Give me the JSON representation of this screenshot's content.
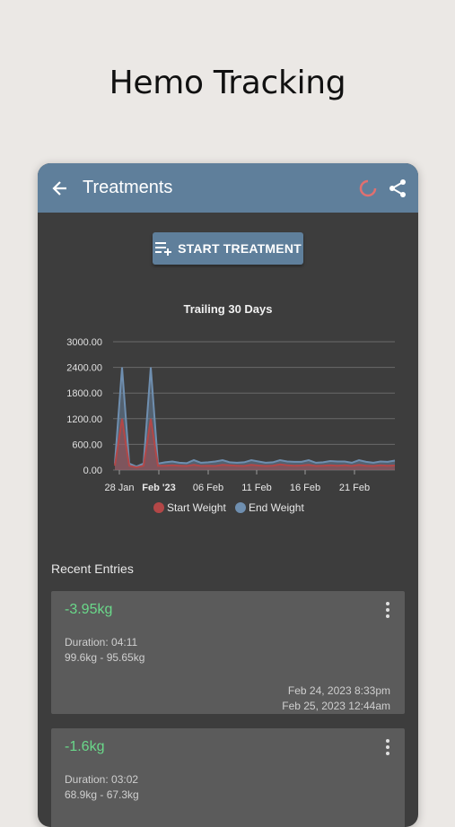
{
  "promo": {
    "title": "Hemo Tracking"
  },
  "appbar": {
    "title": "Treatments",
    "back_icon": "arrow-left-icon",
    "loading_icon": "spinner-icon",
    "share_icon": "share-icon"
  },
  "actions": {
    "start_label": "START TREATMENT",
    "start_icon": "playlist-add-icon"
  },
  "colors": {
    "accent": "#5f7f9b",
    "start_series": "#b34747",
    "end_series": "#6f8fb0",
    "positive": "#6ad98a",
    "panel": "#3d3d3d",
    "card": "#5b5b5b"
  },
  "chart_data": {
    "type": "area",
    "title": "Trailing 30 Days",
    "x_labels": [
      "28 Jan",
      "Feb '23",
      "06 Feb",
      "11 Feb",
      "16 Feb",
      "21 Feb"
    ],
    "y_ticks": [
      "3000.00",
      "2400.00",
      "1800.00",
      "1200.00",
      "600.00",
      "0.00"
    ],
    "ylim": [
      0,
      3000
    ],
    "legend": [
      "Start Weight",
      "End Weight"
    ],
    "legend_position": "bottom",
    "grid": true,
    "series": [
      {
        "name": "Start Weight",
        "values": [
          100,
          1200,
          100,
          60,
          100,
          1200,
          100,
          100,
          110,
          100,
          95,
          120,
          95,
          100,
          95,
          120,
          110,
          100,
          95,
          120,
          105,
          95,
          100,
          130,
          110,
          100,
          105,
          120,
          95,
          100,
          110,
          100,
          110,
          95,
          120,
          100,
          95,
          110,
          100,
          105
        ]
      },
      {
        "name": "End Weight",
        "values": [
          150,
          2400,
          150,
          80,
          150,
          2400,
          150,
          180,
          200,
          170,
          160,
          230,
          170,
          180,
          200,
          230,
          180,
          170,
          180,
          230,
          200,
          170,
          180,
          230,
          200,
          190,
          190,
          230,
          170,
          180,
          210,
          200,
          200,
          170,
          230,
          190,
          170,
          200,
          190,
          220
        ]
      }
    ]
  },
  "recent": {
    "label": "Recent Entries",
    "entries": [
      {
        "delta": "-3.95kg",
        "duration": "Duration: 04:11",
        "weights": "99.6kg - 95.65kg",
        "start": "Feb 24, 2023 8:33pm",
        "end": "Feb 25, 2023 12:44am"
      },
      {
        "delta": "-1.6kg",
        "duration": "Duration: 03:02",
        "weights": "68.9kg - 67.3kg"
      }
    ]
  }
}
